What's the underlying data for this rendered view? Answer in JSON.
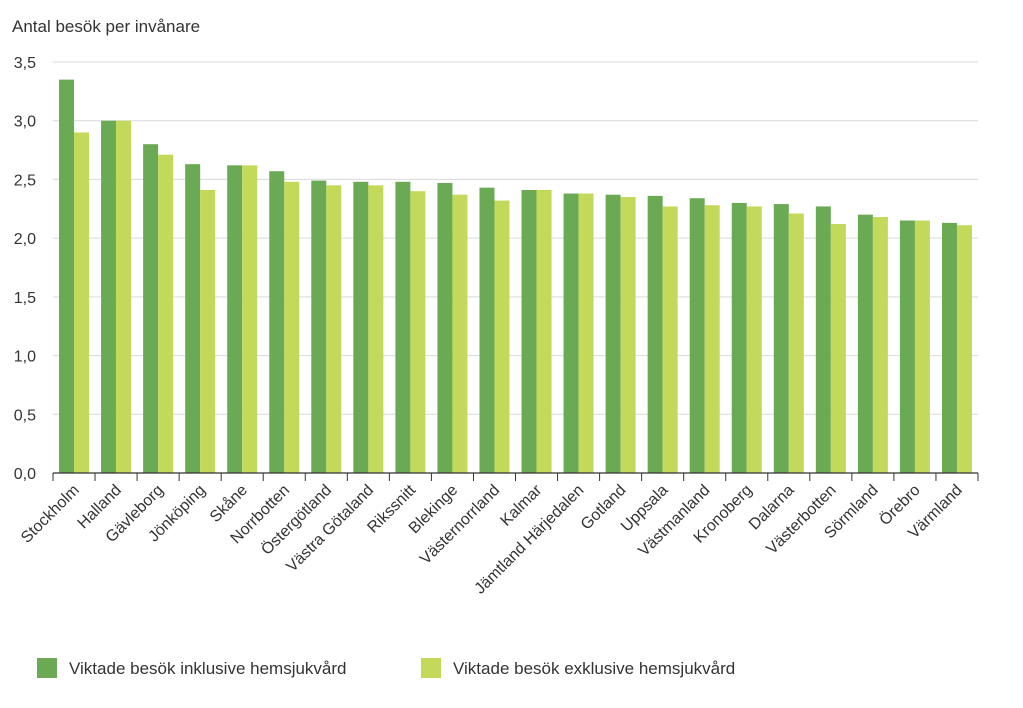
{
  "chart_data": {
    "type": "bar",
    "ylabel": "Antal besök per invånare",
    "ylim": [
      0,
      3.5
    ],
    "yticks": [
      "0,0",
      "0,5",
      "1,0",
      "1,5",
      "2,0",
      "2,5",
      "3,0",
      "3,5"
    ],
    "ytick_values": [
      0,
      0.5,
      1.0,
      1.5,
      2.0,
      2.5,
      3.0,
      3.5
    ],
    "grid": true,
    "legend_position": "bottom-left",
    "categories": [
      "Stockholm",
      "Halland",
      "Gävleborg",
      "Jönköping",
      "Skåne",
      "Norrbotten",
      "Östergötland",
      "Västra Götaland",
      "Rikssnitt",
      "Blekinge",
      "Västernorrland",
      "Kalmar",
      "Jämtland Härjedalen",
      "Gotland",
      "Uppsala",
      "Västmanland",
      "Kronoberg",
      "Dalarna",
      "Västerbotten",
      "Sörmland",
      "Örebro",
      "Värmland"
    ],
    "series": [
      {
        "name": "Viktade besök inklusive hemsjukvård",
        "color": "#6aaa55",
        "values": [
          3.35,
          3.0,
          2.8,
          2.63,
          2.62,
          2.57,
          2.49,
          2.48,
          2.48,
          2.47,
          2.43,
          2.41,
          2.38,
          2.37,
          2.36,
          2.34,
          2.3,
          2.29,
          2.27,
          2.2,
          2.15,
          2.13
        ]
      },
      {
        "name": "Viktade besök exklusive hemsjukvård",
        "color": "#c2d95a",
        "values": [
          2.9,
          3.0,
          2.71,
          2.41,
          2.62,
          2.48,
          2.45,
          2.45,
          2.4,
          2.37,
          2.32,
          2.41,
          2.38,
          2.35,
          2.27,
          2.28,
          2.27,
          2.21,
          2.12,
          2.18,
          2.15,
          2.11
        ]
      }
    ]
  }
}
